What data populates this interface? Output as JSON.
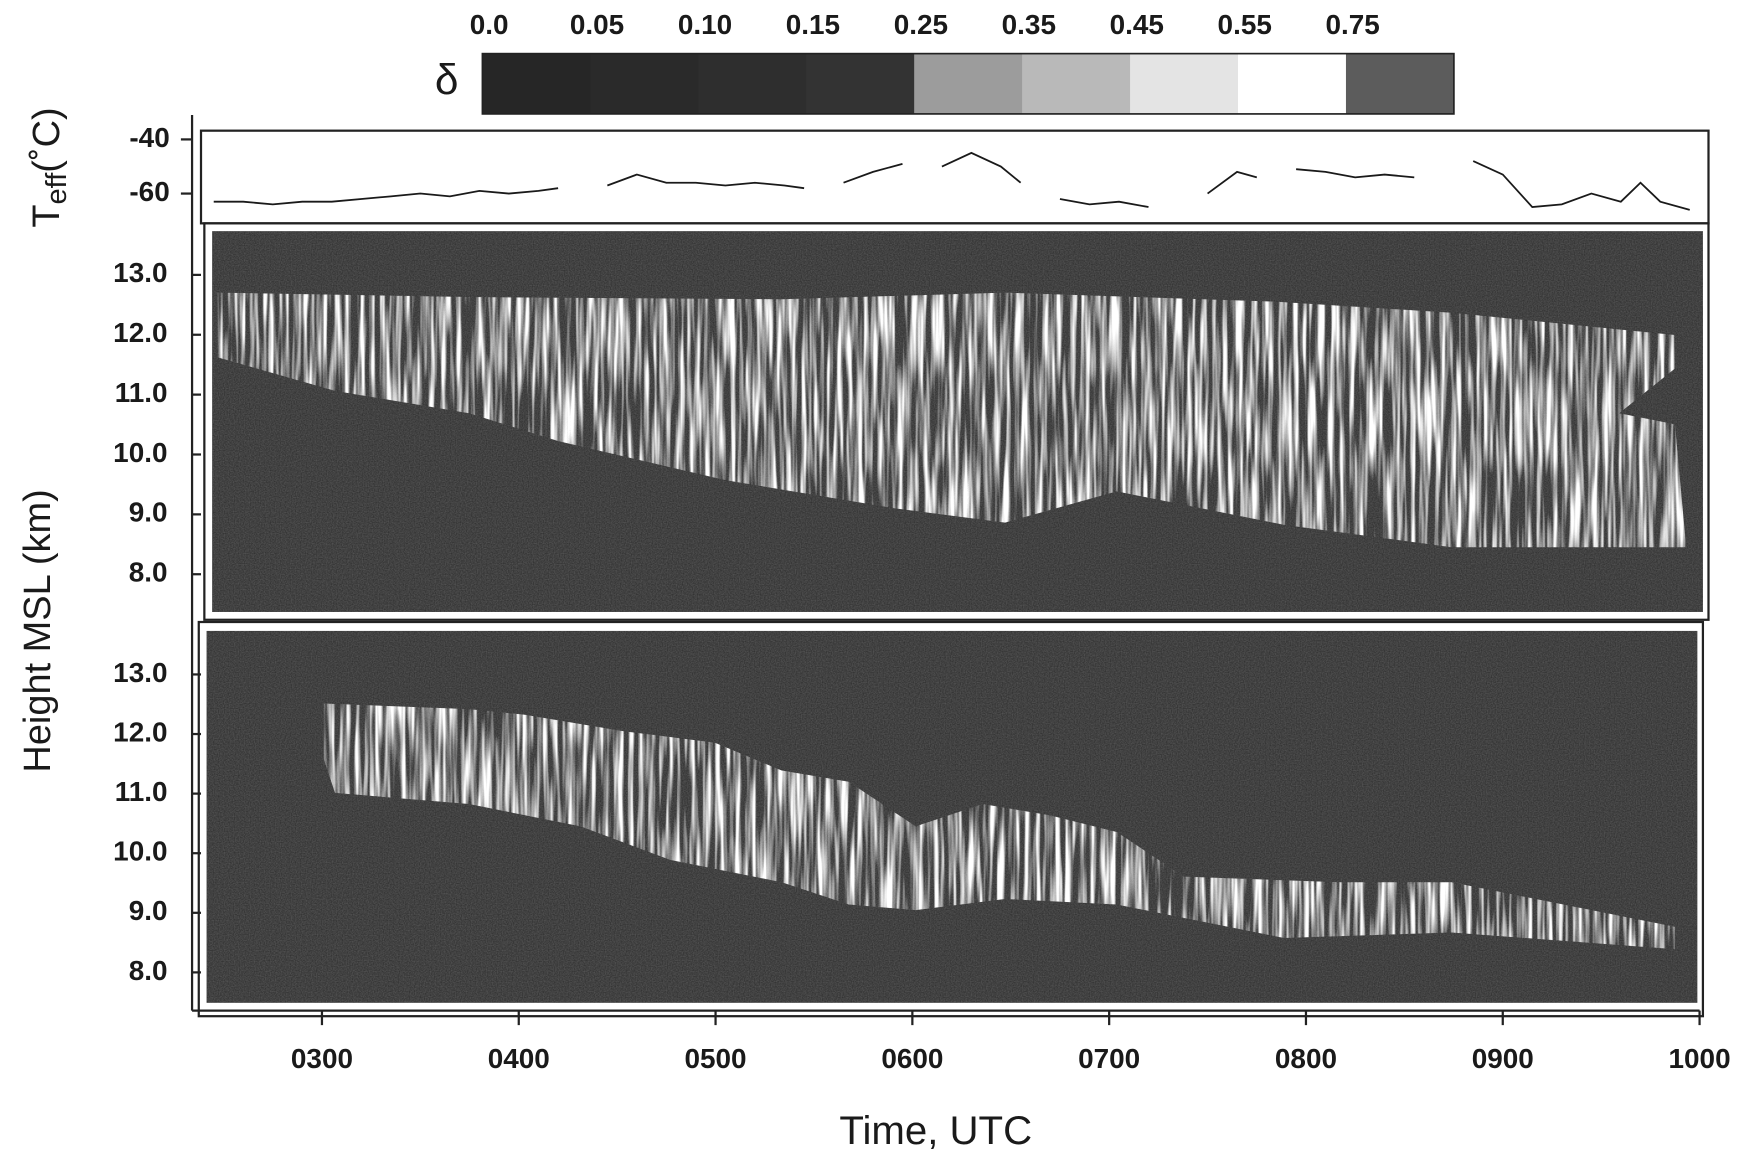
{
  "chart_data": [
    {
      "type": "line",
      "y_label": "T",
      "y_label_sub": "eff",
      "y_label_unit": "(˚C)",
      "colorbar": {
        "symbol": "δ",
        "ticks": [
          {
            "value": 0,
            "label": "0.0"
          },
          0.05,
          {
            "value": 0.1,
            "label": "0.10"
          },
          0.15,
          0.25,
          0.35,
          0.45,
          0.55,
          0.75
        ],
        "colors": [
          "#262626",
          "#2a2a2a",
          "#2e2e2e",
          "#333333",
          "#9c9c9c",
          "#b9b9b9",
          "#e4e4e4",
          "#ffffff",
          "#5c5c5c"
        ]
      },
      "x": [
        2.45,
        2.6,
        2.75,
        2.9,
        3.05,
        3.2,
        3.35,
        3.5,
        3.65,
        3.8,
        3.95,
        4.1,
        4.2,
        4.25,
        4.35,
        4.45,
        4.6,
        4.75,
        4.9,
        5.05,
        5.2,
        5.35,
        5.45,
        5.55,
        5.65,
        5.8,
        5.95,
        6.05,
        6.15,
        6.3,
        6.45,
        6.55,
        6.6,
        6.75,
        6.9,
        7.05,
        7.2,
        7.35,
        7.5,
        7.65,
        7.75,
        7.85,
        7.95,
        8.1,
        8.25,
        8.4,
        8.55,
        8.7,
        8.85,
        9.0,
        9.15,
        9.3,
        9.45,
        9.6,
        9.7,
        9.8,
        9.95
      ],
      "series": [
        {
          "color": "#1a1a1a",
          "values": [
            -63,
            -63,
            -64,
            -63,
            -63,
            -62,
            -61,
            -60,
            -61,
            -59,
            -60,
            -59,
            -58,
            null,
            null,
            -57,
            -53,
            -56,
            -56,
            -57,
            -56,
            -57,
            -58,
            null,
            -56,
            -52,
            -49,
            null,
            -50,
            -45,
            -50,
            -56,
            null,
            -62,
            -64,
            -63,
            -65,
            null,
            -60,
            -52,
            -54,
            null,
            -51,
            -52,
            -54,
            -53,
            -54,
            null,
            -48,
            -53,
            -65,
            -64,
            -60,
            -63,
            -56,
            -63,
            -66
          ]
        }
      ],
      "xlim": [
        2.34,
        10.0
      ],
      "ylim": [
        -71,
        -31
      ],
      "yticks": [
        -40,
        -60
      ]
    },
    {
      "type": "image",
      "y_label": "Height MSL (km)",
      "ylim": [
        7.37,
        13.73
      ],
      "yticks": [
        {
          "value": 13,
          "label": "13.0"
        },
        {
          "value": 12,
          "label": "12.0"
        },
        {
          "value": 11,
          "label": "11.0"
        },
        {
          "value": 10,
          "label": "10.0"
        },
        {
          "value": 9,
          "label": "9.0"
        },
        {
          "value": 8,
          "label": "8.0"
        }
      ]
    },
    {
      "type": "image",
      "x_label": "Time, UTC",
      "ylim": [
        7.49,
        13.73
      ],
      "yticks": [
        {
          "value": 13,
          "label": "13.0"
        },
        {
          "value": 12,
          "label": "12.0"
        },
        {
          "value": 11,
          "label": "11.0"
        },
        {
          "value": 10,
          "label": "10.0"
        },
        {
          "value": 9,
          "label": "9.0"
        },
        {
          "value": 8,
          "label": "8.0"
        }
      ],
      "xticks": [
        {
          "value": 3,
          "label": "0300"
        },
        {
          "value": 4,
          "label": "0400"
        },
        {
          "value": 5,
          "label": "0500"
        },
        {
          "value": 6,
          "label": "0600"
        },
        {
          "value": 7,
          "label": "0700"
        },
        {
          "value": 8,
          "label": "0800"
        },
        {
          "value": 9,
          "label": "0900"
        },
        {
          "value": 10,
          "label": "1000"
        }
      ]
    }
  ]
}
